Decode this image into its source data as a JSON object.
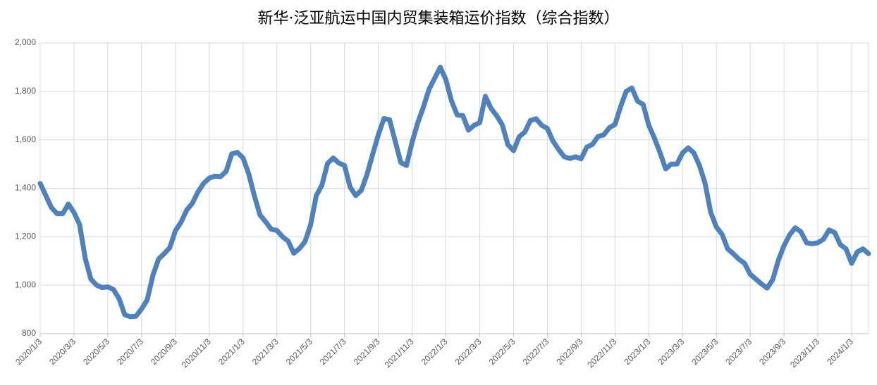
{
  "chart_data": {
    "type": "line",
    "title": "新华·泛亚航运中国内贸集装箱运价指数（综合指数）",
    "categories": [
      "2020/1/3",
      null,
      null,
      null,
      null,
      null,
      "2020/3/3",
      null,
      null,
      null,
      null,
      null,
      "2020/5/3",
      null,
      null,
      null,
      null,
      null,
      "2020/7/3",
      null,
      null,
      null,
      null,
      null,
      "2020/9/3",
      null,
      null,
      null,
      null,
      null,
      "2020/11/3",
      null,
      null,
      null,
      null,
      null,
      "2021/1/3",
      null,
      null,
      null,
      null,
      null,
      "2021/3/3",
      null,
      null,
      null,
      null,
      null,
      "2021/5/3",
      null,
      null,
      null,
      null,
      null,
      "2021/7/3",
      null,
      null,
      null,
      null,
      null,
      "2021/9/3",
      null,
      null,
      null,
      null,
      null,
      "2021/11/3",
      null,
      null,
      null,
      null,
      null,
      "2022/1/3",
      null,
      null,
      null,
      null,
      null,
      "2022/3/3",
      null,
      null,
      null,
      null,
      null,
      "2022/5/3",
      null,
      null,
      null,
      null,
      null,
      "2022/7/3",
      null,
      null,
      null,
      null,
      null,
      "2022/9/3",
      null,
      null,
      null,
      null,
      null,
      "2022/11/3",
      null,
      null,
      null,
      null,
      null,
      "2023/1/3",
      null,
      null,
      null,
      null,
      null,
      "2023/3/3",
      null,
      null,
      null,
      null,
      null,
      "2023/5/3",
      null,
      null,
      null,
      null,
      null,
      "2023/7/3",
      null,
      null,
      null,
      null,
      null,
      "2023/9/3",
      null,
      null,
      null,
      null,
      null,
      "2023/11/3",
      null,
      null,
      null,
      null,
      null,
      "2024/1/3",
      null,
      null,
      null
    ],
    "series": [
      {
        "name": "综合指数",
        "color": "#4f81bd",
        "values": [
          1420,
          1370,
          1320,
          1295,
          1295,
          1335,
          1300,
          1250,
          1110,
          1025,
          1000,
          990,
          993,
          982,
          945,
          878,
          870,
          872,
          902,
          940,
          1040,
          1108,
          1130,
          1155,
          1225,
          1260,
          1310,
          1338,
          1385,
          1420,
          1442,
          1450,
          1448,
          1470,
          1542,
          1548,
          1525,
          1460,
          1370,
          1290,
          1262,
          1231,
          1226,
          1200,
          1182,
          1132,
          1151,
          1180,
          1250,
          1370,
          1413,
          1503,
          1525,
          1504,
          1494,
          1405,
          1370,
          1392,
          1457,
          1540,
          1620,
          1688,
          1683,
          1595,
          1506,
          1494,
          1590,
          1670,
          1735,
          1808,
          1854,
          1900,
          1848,
          1760,
          1703,
          1700,
          1640,
          1660,
          1671,
          1780,
          1730,
          1700,
          1662,
          1580,
          1555,
          1613,
          1632,
          1680,
          1687,
          1660,
          1647,
          1595,
          1560,
          1530,
          1523,
          1530,
          1522,
          1570,
          1581,
          1614,
          1620,
          1650,
          1663,
          1737,
          1800,
          1814,
          1760,
          1746,
          1660,
          1607,
          1547,
          1480,
          1500,
          1500,
          1546,
          1567,
          1546,
          1494,
          1420,
          1300,
          1240,
          1210,
          1150,
          1130,
          1107,
          1090,
          1045,
          1025,
          1005,
          988,
          1023,
          1103,
          1163,
          1208,
          1237,
          1220,
          1175,
          1171,
          1175,
          1190,
          1228,
          1217,
          1167,
          1150,
          1090,
          1137,
          1150,
          1130
        ]
      }
    ],
    "ylim": [
      800,
      2000
    ],
    "yticks": [
      800,
      {
        "value": 1000,
        "label": "1,000"
      },
      {
        "value": 1200,
        "label": "1,200"
      },
      {
        "value": 1400,
        "label": "1,400"
      },
      {
        "value": 1600,
        "label": "1,600"
      },
      {
        "value": 1800,
        "label": "1,800"
      },
      {
        "value": 2000,
        "label": "2,000"
      }
    ],
    "grid": true
  }
}
